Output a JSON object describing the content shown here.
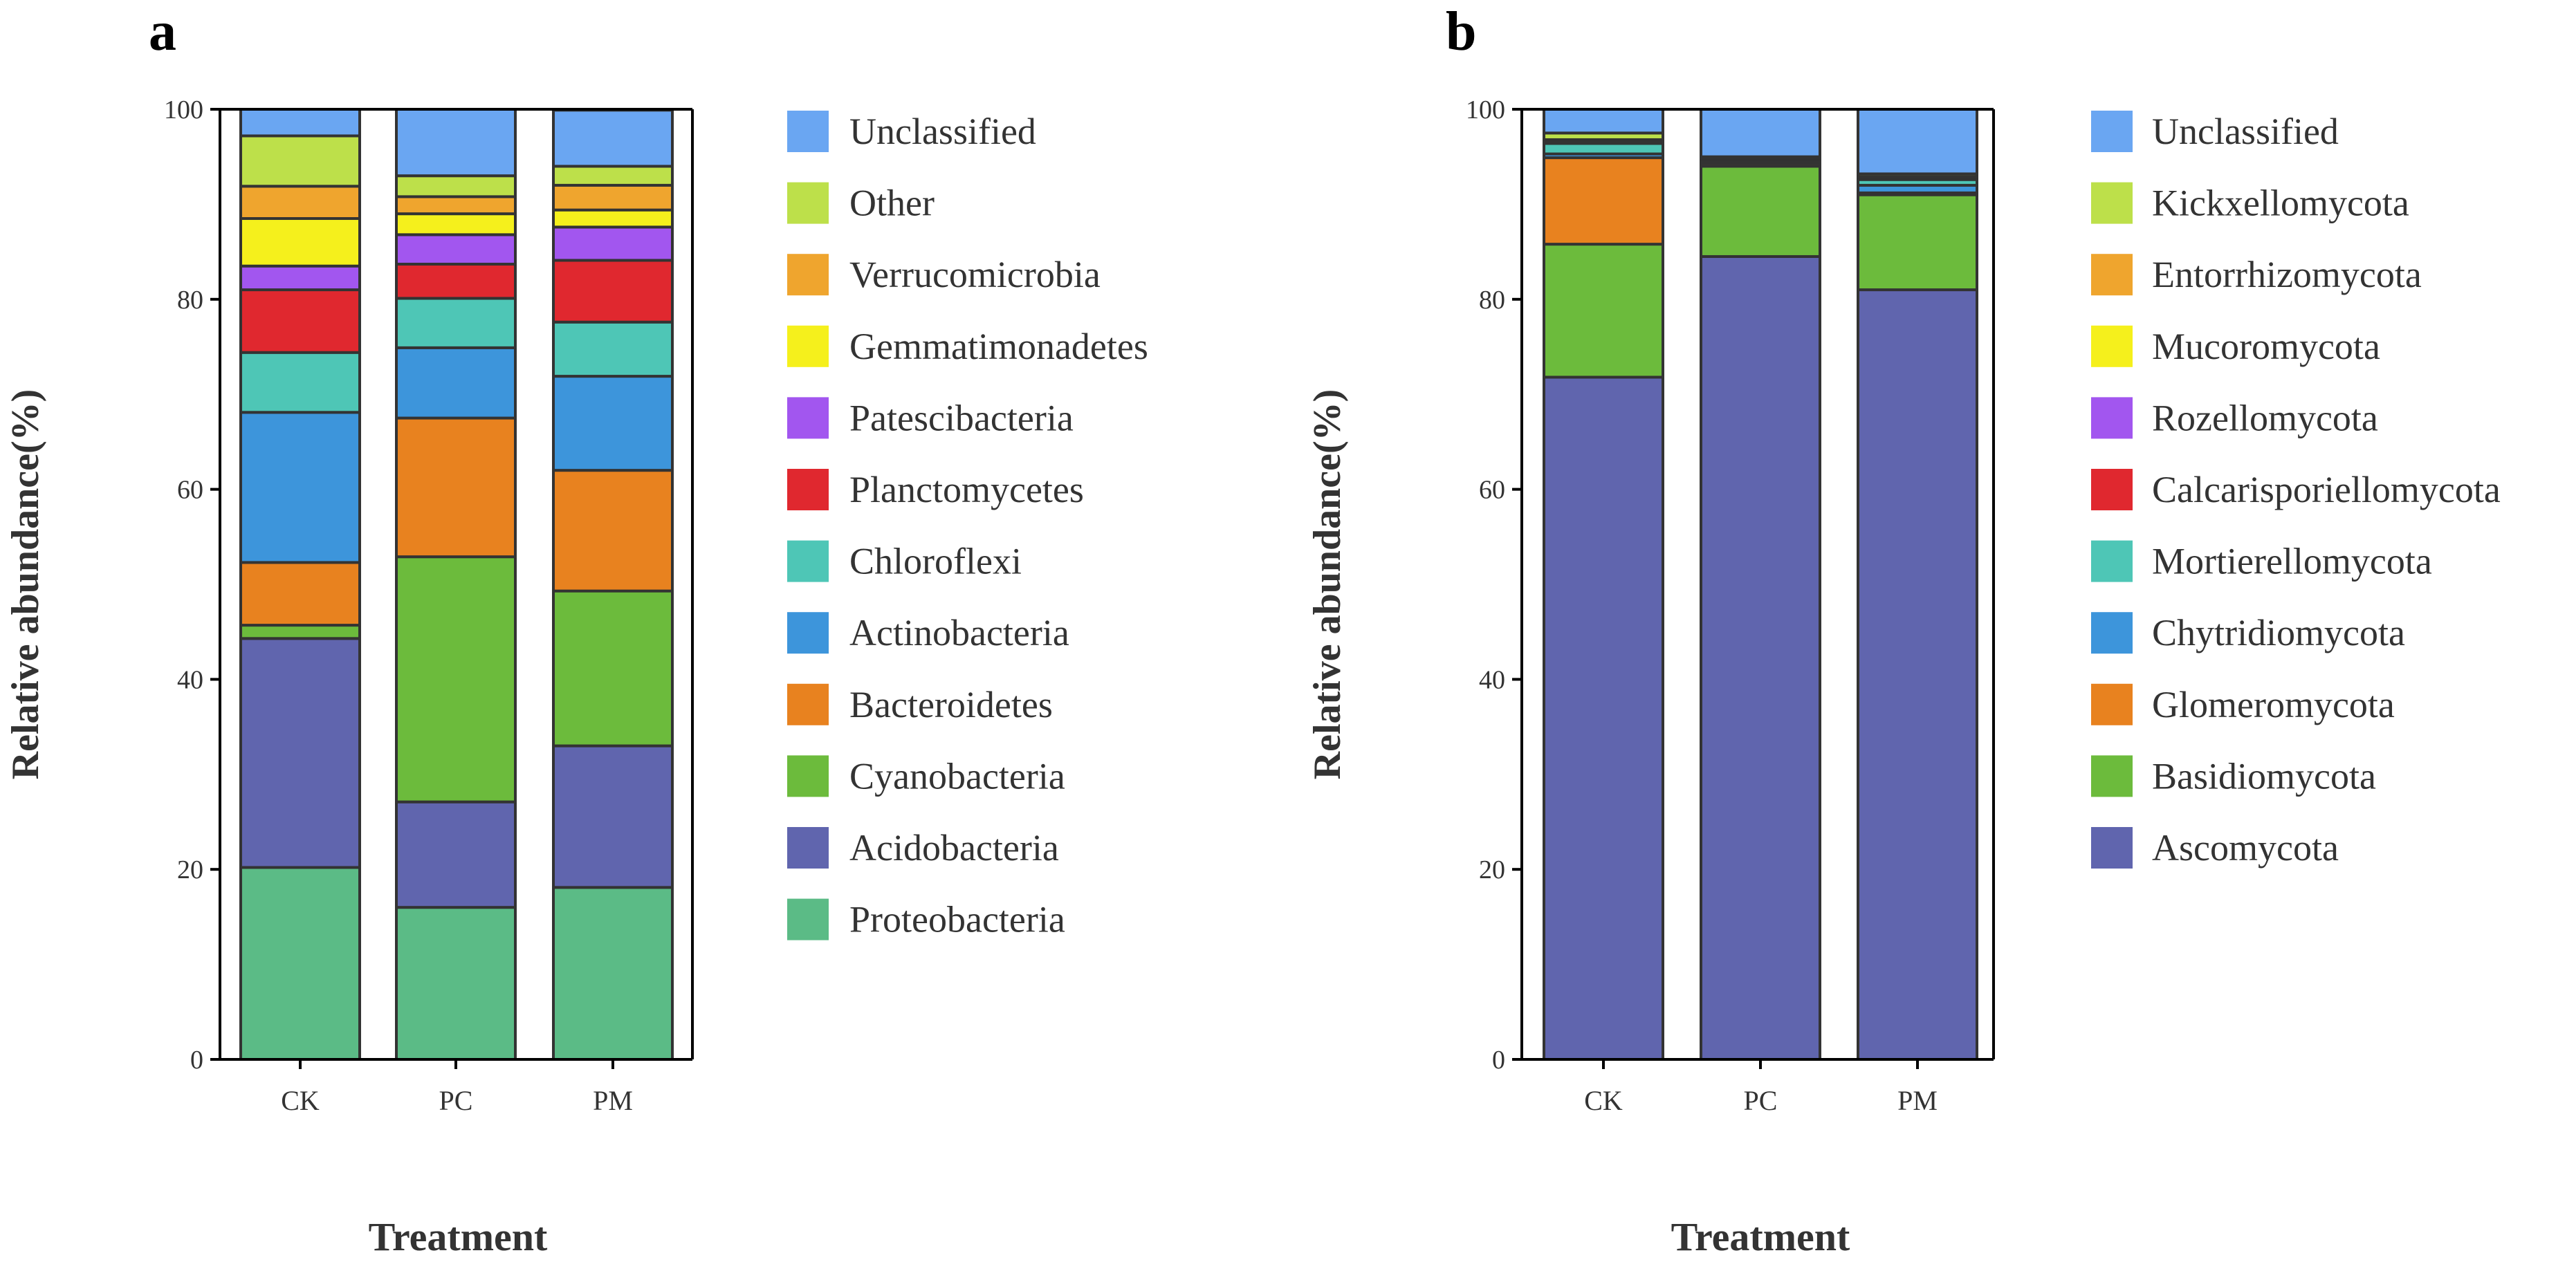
{
  "chart_data": [
    {
      "panel": "a",
      "type": "bar",
      "stacked": true,
      "xlabel": "Treatment",
      "ylabel": "Relative abundance(%)",
      "ylim": [
        0,
        100
      ],
      "yticks": [
        "0",
        "20",
        "40",
        "60",
        "80",
        "100"
      ],
      "categories": [
        "CK",
        "PC",
        "PM"
      ],
      "series": [
        {
          "name": "Proteobacteria",
          "color": "#5bbb86",
          "values": [
            20.2,
            16.0,
            18.1
          ]
        },
        {
          "name": "Acidobacteria",
          "color": "#6065ae",
          "values": [
            24.1,
            11.1,
            14.9
          ]
        },
        {
          "name": "Cyanobacteria",
          "color": "#6cbb3c",
          "values": [
            1.4,
            25.8,
            16.3
          ]
        },
        {
          "name": "Bacteroidetes",
          "color": "#e8821f",
          "values": [
            6.6,
            14.6,
            12.7
          ]
        },
        {
          "name": "Actinobacteria",
          "color": "#3d95db",
          "values": [
            15.8,
            7.4,
            9.9
          ]
        },
        {
          "name": "Chloroflexi",
          "color": "#4ec6b6",
          "values": [
            6.3,
            5.2,
            5.7
          ]
        },
        {
          "name": "Planctomycetes",
          "color": "#e0282f",
          "values": [
            6.6,
            3.6,
            6.5
          ]
        },
        {
          "name": "Patescibacteria",
          "color": "#a256ef",
          "values": [
            2.5,
            3.1,
            3.5
          ]
        },
        {
          "name": "Gemmatimonadetes",
          "color": "#f5f01c",
          "values": [
            5.0,
            2.2,
            1.8
          ]
        },
        {
          "name": "Verrucomicrobia",
          "color": "#efa52e",
          "values": [
            3.4,
            1.8,
            2.6
          ]
        },
        {
          "name": "Other",
          "color": "#bde04a",
          "values": [
            5.3,
            2.2,
            2.0
          ]
        },
        {
          "name": "Unclassified",
          "color": "#6aa6f2",
          "values": [
            2.8,
            7.0,
            5.9
          ]
        }
      ]
    },
    {
      "panel": "b",
      "type": "bar",
      "stacked": true,
      "xlabel": "Treatment",
      "ylabel": "Relative abundance(%)",
      "ylim": [
        0,
        100
      ],
      "yticks": [
        "0",
        "20",
        "40",
        "60",
        "80",
        "100"
      ],
      "categories": [
        "CK",
        "PC",
        "PM"
      ],
      "series": [
        {
          "name": "Ascomycota",
          "color": "#6065ae",
          "values": [
            71.8,
            84.5,
            81.0
          ]
        },
        {
          "name": "Basidiomycota",
          "color": "#6cbb3c",
          "values": [
            14.0,
            9.5,
            10.0
          ]
        },
        {
          "name": "Glomeromycota",
          "color": "#e8821f",
          "values": [
            9.1,
            0.3,
            0.2
          ]
        },
        {
          "name": "Chytridiomycota",
          "color": "#3d95db",
          "values": [
            0.4,
            0.2,
            0.8
          ]
        },
        {
          "name": "Mortierellomycota",
          "color": "#4ec6b6",
          "values": [
            1.1,
            0.2,
            0.6
          ]
        },
        {
          "name": "Calcarisporiellomycota",
          "color": "#e0282f",
          "values": [
            0.1,
            0.1,
            0.1
          ]
        },
        {
          "name": "Rozellomycota",
          "color": "#a256ef",
          "values": [
            0.1,
            0.1,
            0.1
          ]
        },
        {
          "name": "Mucoromycota",
          "color": "#f5f01c",
          "values": [
            0.1,
            0.0,
            0.1
          ]
        },
        {
          "name": "Entorrhizomycota",
          "color": "#efa52e",
          "values": [
            0.1,
            0.0,
            0.0
          ]
        },
        {
          "name": "Kickxellomycota",
          "color": "#bde04a",
          "values": [
            0.7,
            0.1,
            0.3
          ]
        },
        {
          "name": "Unclassified",
          "color": "#6aa6f2",
          "values": [
            2.5,
            5.0,
            6.8
          ]
        }
      ]
    }
  ]
}
